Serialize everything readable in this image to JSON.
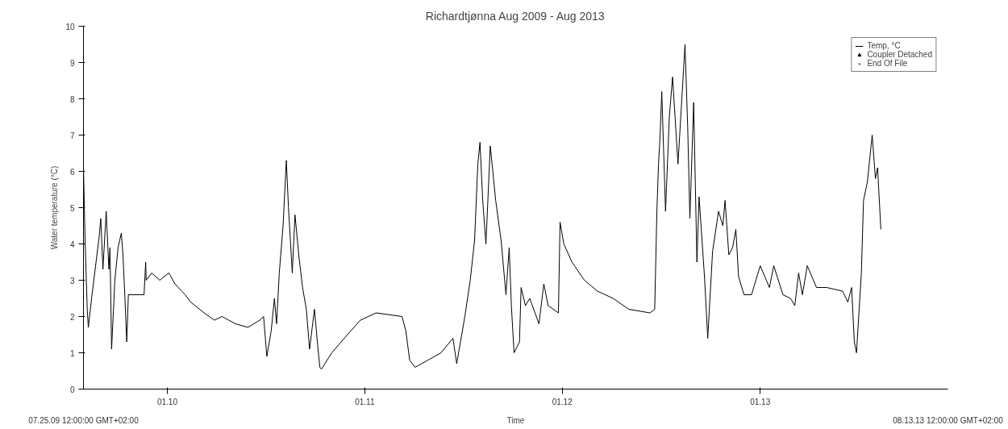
{
  "chart_data": {
    "type": "line",
    "title": "Richardtjønna Aug 2009 - Aug 2013",
    "xlabel": "Time",
    "ylabel": "Water temperature (°C)",
    "xlim": [
      "2009-07-30",
      "2013-12-14"
    ],
    "ylim": [
      0,
      10
    ],
    "xticks": [
      {
        "value": "2010-01-01",
        "label": "01.10"
      },
      {
        "value": "2011-01-01",
        "label": "01.11"
      },
      {
        "value": "2012-01-01",
        "label": "01.12"
      },
      {
        "value": "2013-01-01",
        "label": "01.13"
      }
    ],
    "yticks": [
      0,
      1,
      2,
      3,
      4,
      5,
      6,
      7,
      8,
      9,
      10
    ],
    "grid": false,
    "legend": "top right",
    "annotations": [
      "07.25.09 12:00:00 GMT+02:00",
      "08.13.13 12:00:00 GMT+02:00"
    ],
    "series": [
      {
        "name": "Temp, °C",
        "color": "#000000",
        "marker": "none",
        "x": [
          "2009-07-30",
          "2009-08-02",
          "2009-08-06",
          "2009-08-08",
          "2009-08-14",
          "2009-08-28",
          "2009-08-31",
          "2009-09-04",
          "2009-09-10",
          "2009-09-15",
          "2009-09-17",
          "2009-09-20",
          "2009-09-26",
          "2009-10-02",
          "2009-10-08",
          "2009-10-11",
          "2009-10-15",
          "2009-10-18",
          "2009-10-21",
          "2009-10-31",
          "2009-11-19",
          "2009-11-22",
          "2009-11-23",
          "2009-12-03",
          "2009-12-18",
          "2010-01-04",
          "2010-01-15",
          "2010-02-03",
          "2010-02-13",
          "2010-03-10",
          "2010-03-29",
          "2010-04-12",
          "2010-05-07",
          "2010-05-30",
          "2010-06-21",
          "2010-06-28",
          "2010-07-04",
          "2010-07-12",
          "2010-07-18",
          "2010-07-22",
          "2010-07-27",
          "2010-08-03",
          "2010-08-09",
          "2010-08-13",
          "2010-08-20",
          "2010-08-25",
          "2010-09-01",
          "2010-09-08",
          "2010-09-15",
          "2010-09-21",
          "2010-09-30",
          "2010-10-06",
          "2010-10-10",
          "2010-10-13",
          "2010-11-01",
          "2010-11-30",
          "2010-12-24",
          "2011-01-22",
          "2011-03-11",
          "2011-03-18",
          "2011-03-25",
          "2011-04-04",
          "2011-04-28",
          "2011-05-22",
          "2011-06-13",
          "2011-06-20",
          "2011-07-05",
          "2011-07-15",
          "2011-07-23",
          "2011-07-29",
          "2011-08-02",
          "2011-08-07",
          "2011-08-13",
          "2011-08-21",
          "2011-08-31",
          "2011-09-10",
          "2011-09-19",
          "2011-09-25",
          "2011-09-29",
          "2011-10-04",
          "2011-10-14",
          "2011-10-17",
          "2011-10-25",
          "2011-11-02",
          "2011-11-19",
          "2011-11-28",
          "2011-12-06",
          "2011-12-25",
          "2011-12-28",
          "2012-01-04",
          "2012-01-19",
          "2012-02-11",
          "2012-03-06",
          "2012-04-04",
          "2012-05-03",
          "2012-06-11",
          "2012-06-20",
          "2012-06-24",
          "2012-06-27",
          "2012-06-30",
          "2012-07-03",
          "2012-07-10",
          "2012-07-17",
          "2012-07-23",
          "2012-08-02",
          "2012-08-15",
          "2012-08-20",
          "2012-08-24",
          "2012-08-31",
          "2012-09-06",
          "2012-09-10",
          "2012-09-20",
          "2012-09-26",
          "2012-10-05",
          "2012-10-16",
          "2012-10-24",
          "2012-10-28",
          "2012-11-04",
          "2012-11-11",
          "2012-11-17",
          "2012-11-22",
          "2012-12-02",
          "2012-12-16",
          "2013-01-01",
          "2013-01-18",
          "2013-01-26",
          "2013-02-12",
          "2013-02-26",
          "2013-03-06",
          "2013-03-13",
          "2013-03-20",
          "2013-03-29",
          "2013-04-15",
          "2013-05-04",
          "2013-06-02",
          "2013-06-12",
          "2013-06-19",
          "2013-06-24",
          "2013-06-28",
          "2013-07-07",
          "2013-07-11",
          "2013-07-18",
          "2013-07-27",
          "2013-08-02",
          "2013-08-06",
          "2013-08-12"
        ],
        "values": [
          6.1,
          4.1,
          2.2,
          1.7,
          2.5,
          4.2,
          4.7,
          3.3,
          4.9,
          3.3,
          3.9,
          1.1,
          3.0,
          3.9,
          4.3,
          3.7,
          2.4,
          1.3,
          2.6,
          2.6,
          2.6,
          3.5,
          3.0,
          3.2,
          3.0,
          3.2,
          2.9,
          2.6,
          2.4,
          2.1,
          1.9,
          2.0,
          1.8,
          1.7,
          1.9,
          2.0,
          0.9,
          1.6,
          2.5,
          1.8,
          3.2,
          4.5,
          6.3,
          5.0,
          3.2,
          4.8,
          3.7,
          2.8,
          2.2,
          1.1,
          2.2,
          1.2,
          0.6,
          0.55,
          1.0,
          1.5,
          1.9,
          2.1,
          2.0,
          1.6,
          0.8,
          0.6,
          0.8,
          1.0,
          1.4,
          0.7,
          2.0,
          3.0,
          4.1,
          6.2,
          6.8,
          5.2,
          4.0,
          6.7,
          5.2,
          4.1,
          2.6,
          3.9,
          2.3,
          1.0,
          1.3,
          2.8,
          2.3,
          2.5,
          1.8,
          2.9,
          2.3,
          2.1,
          4.6,
          4.0,
          3.5,
          3.0,
          2.7,
          2.5,
          2.2,
          2.1,
          2.2,
          4.9,
          6.2,
          7.0,
          8.2,
          4.9,
          7.5,
          8.6,
          6.2,
          9.5,
          7.2,
          4.7,
          7.9,
          3.5,
          5.3,
          3.1,
          1.4,
          3.8,
          4.9,
          4.5,
          5.2,
          3.7,
          3.9,
          4.4,
          3.1,
          2.6,
          2.6,
          3.4,
          2.8,
          3.4,
          2.6,
          2.5,
          2.3,
          3.2,
          2.6,
          3.4,
          2.8,
          2.8,
          2.7,
          2.4,
          2.8,
          1.3,
          1.0,
          3.2,
          5.2,
          5.7,
          7.0,
          5.8,
          6.1,
          4.4
        ]
      },
      {
        "name": "Coupler Detached",
        "type": "scatter",
        "color": "#000000",
        "marker": "triangle"
      },
      {
        "name": "End Of File",
        "type": "scatter",
        "color": "#555555",
        "marker": "cross"
      }
    ]
  }
}
